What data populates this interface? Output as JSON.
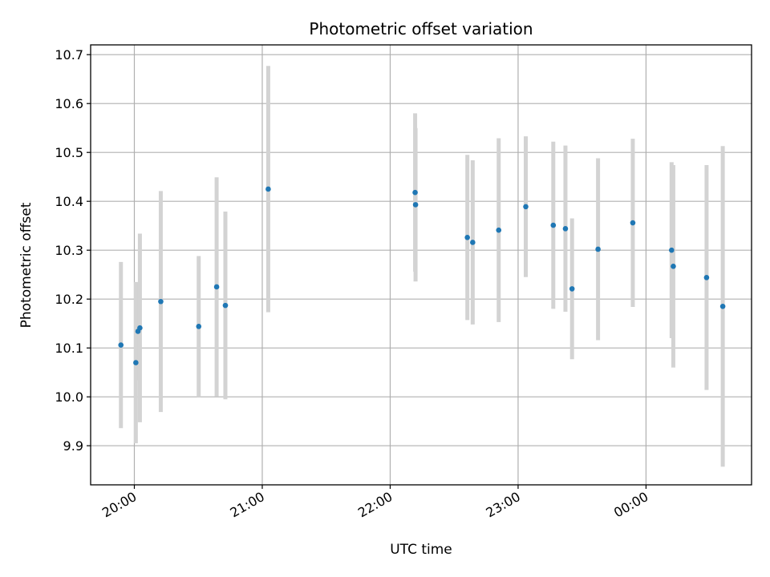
{
  "chart_data": {
    "type": "scatter",
    "title": "Photometric offset variation",
    "xlabel": "UTC time",
    "ylabel": "Photometric offset",
    "x_unit": "minutes after 20:00 UTC",
    "xlim": [
      -20.5,
      289.5
    ],
    "ylim": [
      9.82,
      10.72
    ],
    "grid": true,
    "x_ticks": [
      {
        "value": 0,
        "label": "20:00"
      },
      {
        "value": 60,
        "label": "21:00"
      },
      {
        "value": 120,
        "label": "22:00"
      },
      {
        "value": 180,
        "label": "23:00"
      },
      {
        "value": 240,
        "label": "00:00"
      }
    ],
    "y_ticks": [
      {
        "value": 9.9,
        "label": "9.9"
      },
      {
        "value": 10.0,
        "label": "10.0"
      },
      {
        "value": 10.1,
        "label": "10.1"
      },
      {
        "value": 10.2,
        "label": "10.2"
      },
      {
        "value": 10.3,
        "label": "10.3"
      },
      {
        "value": 10.4,
        "label": "10.4"
      },
      {
        "value": 10.5,
        "label": "10.5"
      },
      {
        "value": 10.6,
        "label": "10.6"
      },
      {
        "value": 10.7,
        "label": "10.7"
      }
    ],
    "colors": {
      "points": "#1f77b4",
      "errorbars": "#d3d3d3",
      "grid": "#b0b0b0"
    },
    "series": [
      {
        "name": "offset",
        "points": [
          {
            "x": -6.3,
            "y": 10.106,
            "err": 0.17
          },
          {
            "x": 0.7,
            "y": 10.07,
            "err": 0.165
          },
          {
            "x": 1.7,
            "y": 10.134,
            "err": 0.1
          },
          {
            "x": 2.6,
            "y": 10.141,
            "err": 0.193
          },
          {
            "x": 12.4,
            "y": 10.195,
            "err": 0.226
          },
          {
            "x": 30.2,
            "y": 10.144,
            "err": 0.144
          },
          {
            "x": 38.6,
            "y": 10.225,
            "err": 0.224
          },
          {
            "x": 42.7,
            "y": 10.187,
            "err": 0.192
          },
          {
            "x": 62.8,
            "y": 10.425,
            "err": 0.252
          },
          {
            "x": 131.7,
            "y": 10.418,
            "err": 0.162
          },
          {
            "x": 131.9,
            "y": 10.393,
            "err": 0.157
          },
          {
            "x": 156.2,
            "y": 10.326,
            "err": 0.169
          },
          {
            "x": 158.7,
            "y": 10.316,
            "err": 0.168
          },
          {
            "x": 170.9,
            "y": 10.341,
            "err": 0.188
          },
          {
            "x": 183.6,
            "y": 10.389,
            "err": 0.144
          },
          {
            "x": 196.5,
            "y": 10.351,
            "err": 0.171
          },
          {
            "x": 202.2,
            "y": 10.344,
            "err": 0.17
          },
          {
            "x": 205.3,
            "y": 10.221,
            "err": 0.144
          },
          {
            "x": 217.5,
            "y": 10.302,
            "err": 0.186
          },
          {
            "x": 233.8,
            "y": 10.356,
            "err": 0.172
          },
          {
            "x": 252.0,
            "y": 10.3,
            "err": 0.18
          },
          {
            "x": 252.8,
            "y": 10.267,
            "err": 0.207
          },
          {
            "x": 268.4,
            "y": 10.244,
            "err": 0.23
          },
          {
            "x": 276.0,
            "y": 10.185,
            "err": 0.328
          }
        ]
      }
    ]
  }
}
